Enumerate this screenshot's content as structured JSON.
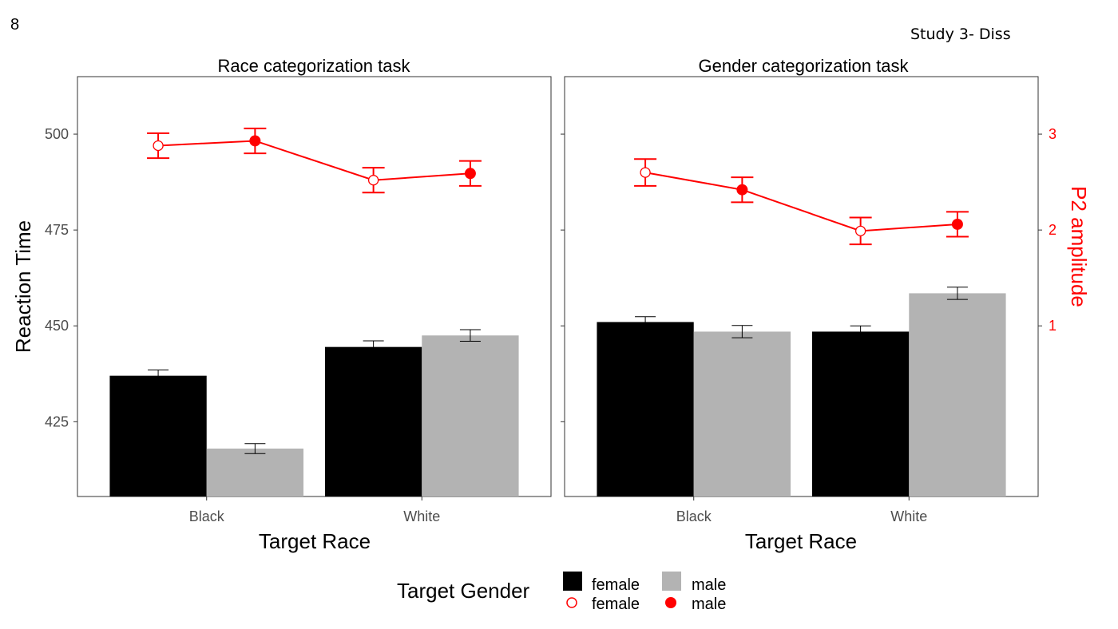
{
  "page_number": "8",
  "header_note": "Study 3- Diss",
  "chart_data": {
    "type": "bar",
    "panels": [
      {
        "title": "Race categorization task",
        "categories": [
          "Black",
          "White"
        ],
        "rt_series": [
          {
            "name": "female",
            "values": [
              437,
              444.5
            ],
            "errors": [
              1.5,
              1.6
            ],
            "color": "#000000"
          },
          {
            "name": "male",
            "values": [
              418,
              447.5
            ],
            "errors": [
              1.3,
              1.5
            ],
            "color": "#b3b3b3"
          }
        ],
        "p2_series": [
          {
            "name": "female",
            "values": [
              2.88,
              2.52
            ],
            "errors": [
              0.13,
              0.13
            ],
            "filled": false
          },
          {
            "name": "male",
            "values": [
              2.93,
              2.59
            ],
            "errors": [
              0.13,
              0.13
            ],
            "filled": true
          }
        ]
      },
      {
        "title": "Gender categorization task",
        "categories": [
          "Black",
          "White"
        ],
        "rt_series": [
          {
            "name": "female",
            "values": [
              451,
              448.5
            ],
            "errors": [
              1.4,
              1.5
            ],
            "color": "#000000"
          },
          {
            "name": "male",
            "values": [
              448.5,
              458.5
            ],
            "errors": [
              1.6,
              1.6
            ],
            "color": "#b3b3b3"
          }
        ],
        "p2_series": [
          {
            "name": "female",
            "values": [
              2.6,
              1.99
            ],
            "errors": [
              0.14,
              0.14
            ],
            "filled": false
          },
          {
            "name": "male",
            "values": [
              2.42,
              2.06
            ],
            "errors": [
              0.13,
              0.13
            ],
            "filled": true
          }
        ]
      }
    ],
    "xlabel": "Target Race",
    "ylabel": "Reaction Time",
    "y2label": "P2 amplitude",
    "ylim": [
      405.5,
      515
    ],
    "yticks": [
      425,
      450,
      475,
      500
    ],
    "y2ticks": [
      1,
      2,
      3
    ],
    "y2_mapping": {
      "p2_at_1": 450,
      "rt_per_p2_unit": 25
    },
    "legend": {
      "title": "Target Gender",
      "position": "bottom",
      "items": [
        {
          "label": "female",
          "kind": "bar",
          "color": "#000000"
        },
        {
          "label": "male",
          "kind": "bar",
          "color": "#b3b3b3"
        },
        {
          "label": "female",
          "kind": "point-open",
          "color": "#ff0000"
        },
        {
          "label": "male",
          "kind": "point-filled",
          "color": "#ff0000"
        }
      ]
    },
    "line_color": "#ff0000",
    "grid": false
  }
}
